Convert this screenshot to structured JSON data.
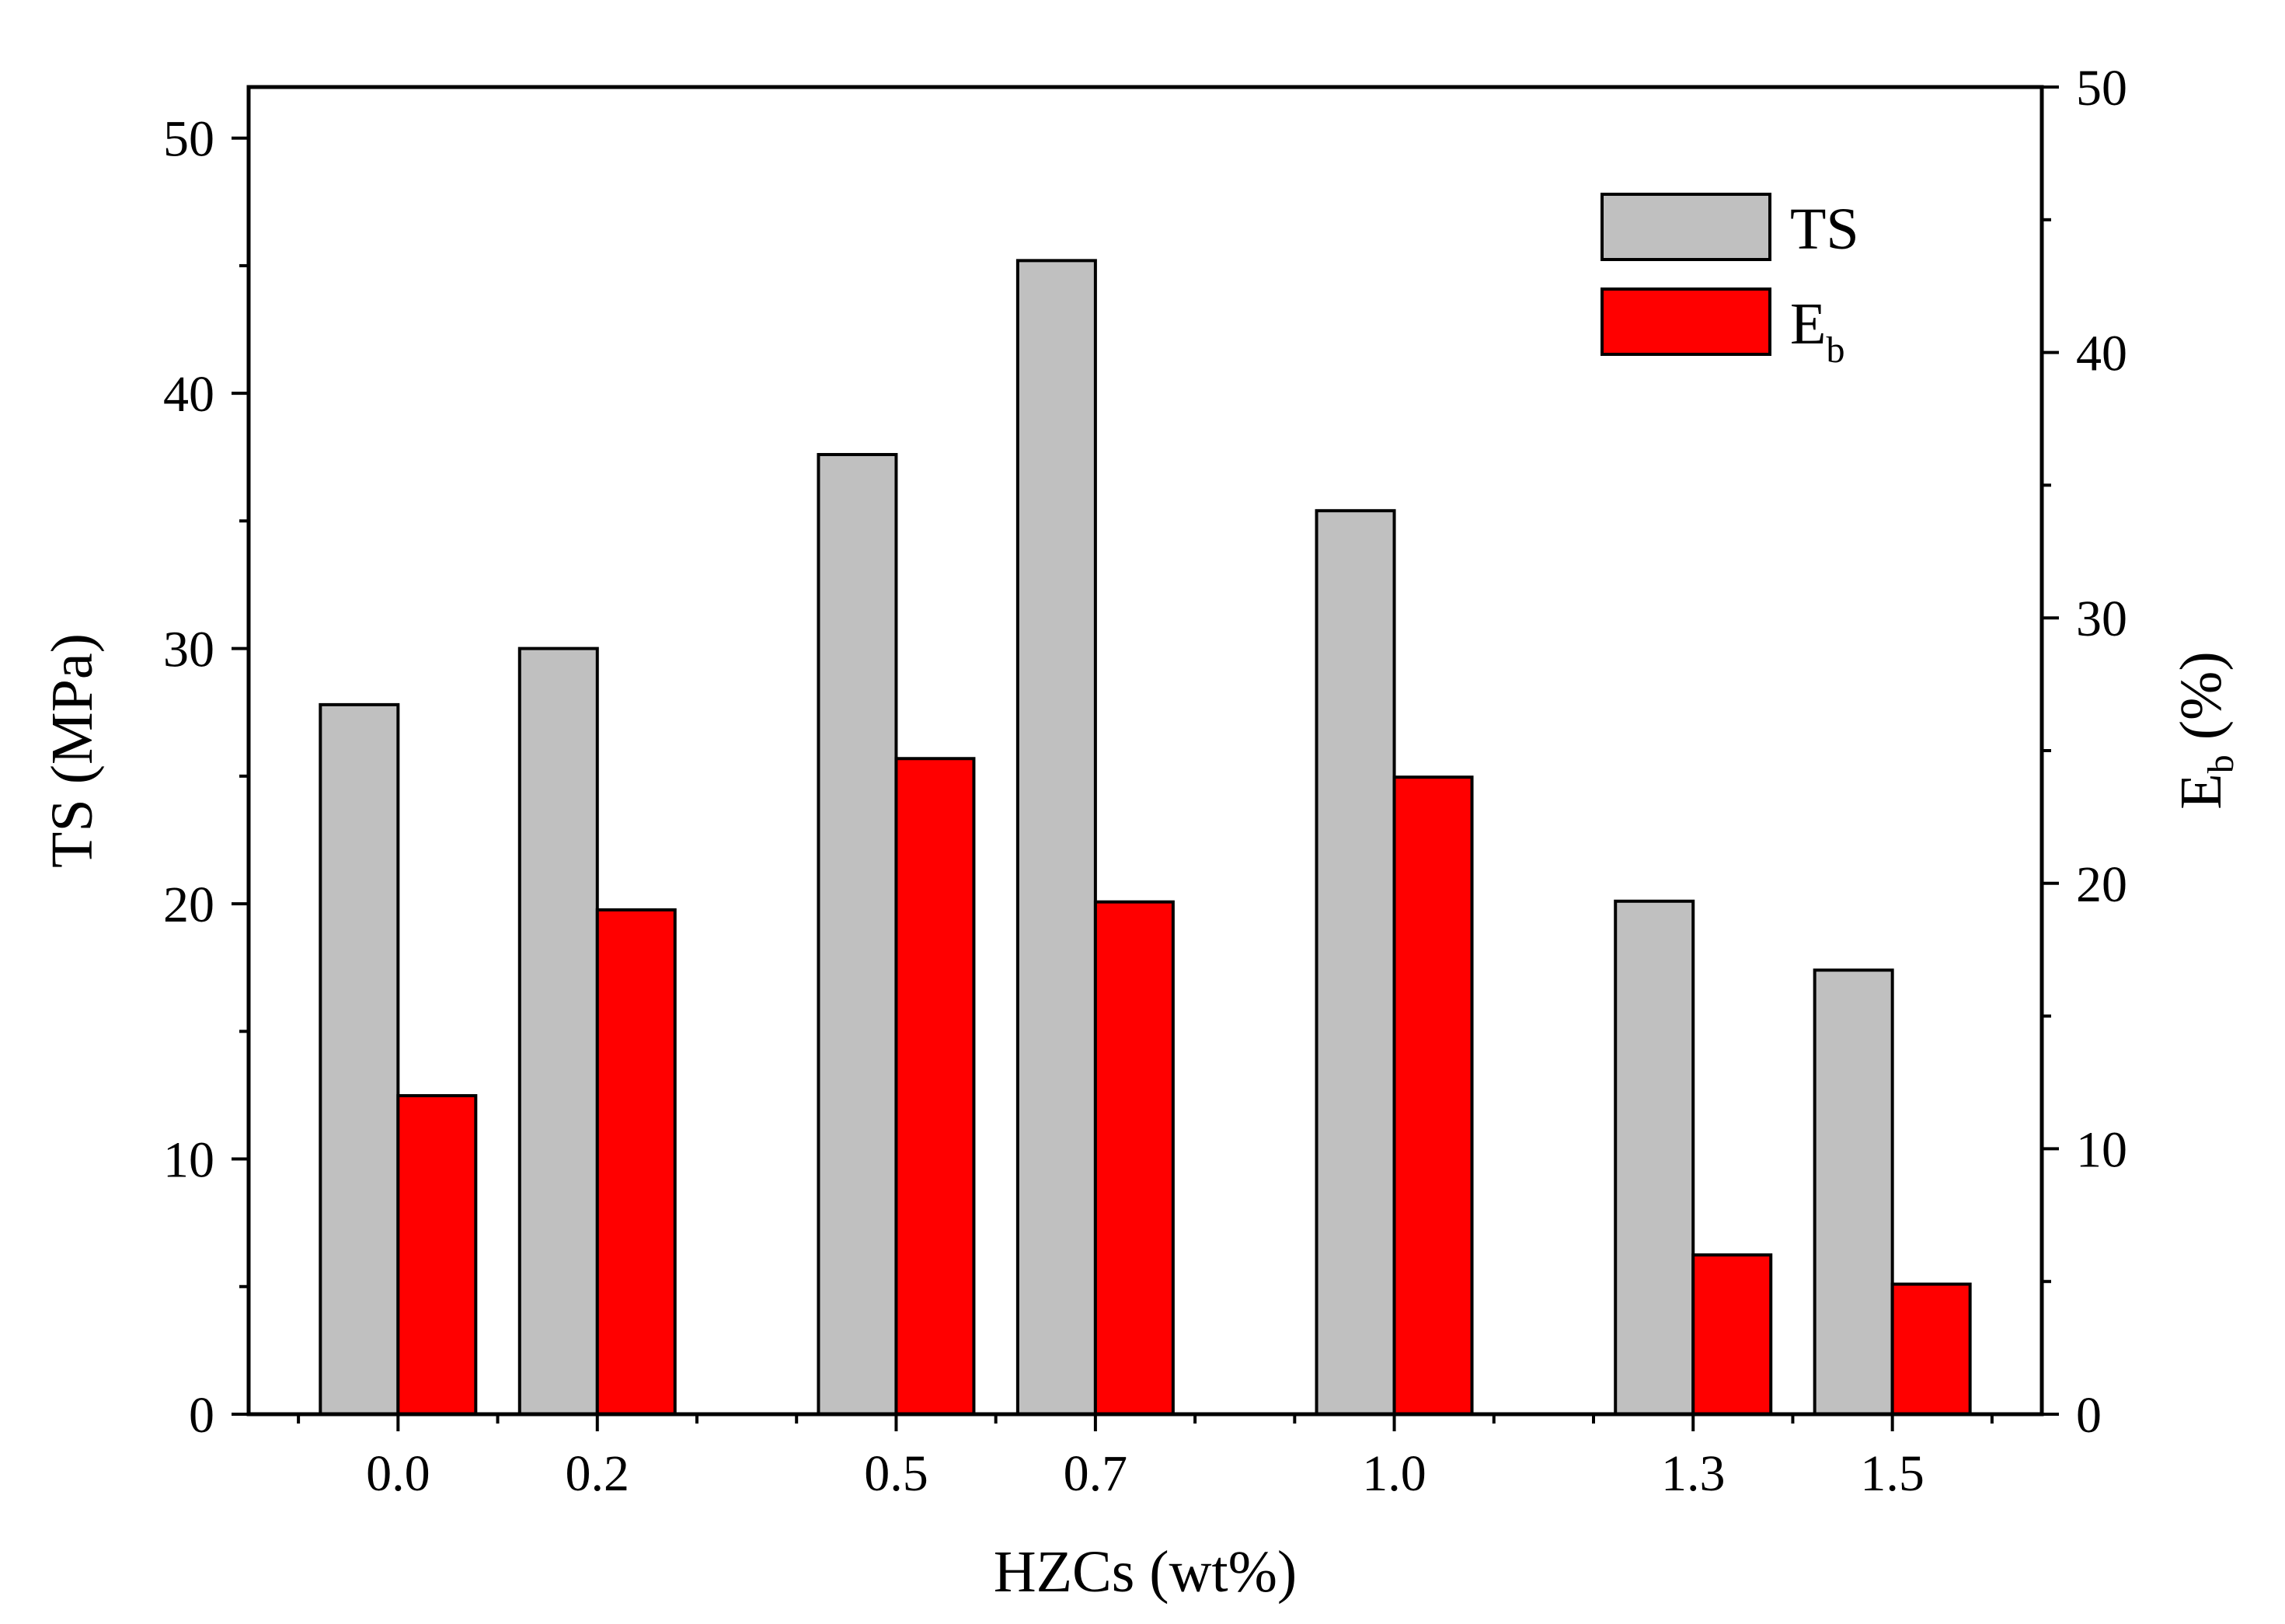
{
  "chart_data": {
    "type": "bar",
    "categories": [
      "0.0",
      "0.2",
      "0.5",
      "0.7",
      "1.0",
      "1.3",
      "1.5"
    ],
    "x_positions": [
      0.0,
      0.2,
      0.5,
      0.7,
      1.0,
      1.3,
      1.5
    ],
    "xlim": [
      -0.15,
      1.65
    ],
    "xlabel": "HZCs (wt%)",
    "left_axis": {
      "label_main": "TS",
      "label_rest": " (MPa)",
      "ylim": [
        0,
        52
      ],
      "ticks": [
        0,
        10,
        20,
        30,
        40,
        50
      ],
      "minor_ticks": [
        5,
        15,
        25,
        35,
        45
      ]
    },
    "right_axis": {
      "label_main": "E",
      "label_sub": "b",
      "label_rest": " (%)",
      "ylim": [
        0,
        50
      ],
      "ticks": [
        0,
        10,
        20,
        30,
        40,
        50
      ],
      "minor_ticks": [
        5,
        15,
        25,
        35,
        45
      ]
    },
    "series": [
      {
        "name": "TS",
        "axis": "left",
        "color": "#c0c0c0",
        "values": [
          27.8,
          30.0,
          37.6,
          45.2,
          35.4,
          20.1,
          17.4
        ]
      },
      {
        "name": "E",
        "name_sub": "b",
        "axis": "right",
        "color": "#ff0000",
        "values": [
          12.0,
          19.0,
          24.7,
          19.3,
          24.0,
          6.0,
          4.9
        ]
      }
    ],
    "legend": {
      "position": "top-right"
    }
  }
}
